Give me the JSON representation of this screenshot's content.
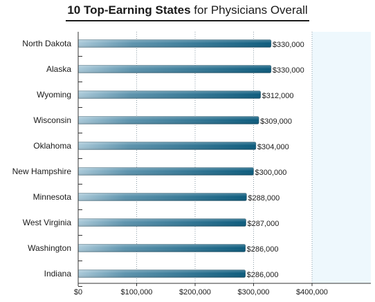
{
  "title": {
    "bold": "10 Top-Earning States",
    "rest": "for Physicians Overall"
  },
  "chart_data": {
    "type": "bar",
    "orientation": "horizontal",
    "categories": [
      "North Dakota",
      "Alaska",
      "Wyoming",
      "Wisconsin",
      "Oklahoma",
      "New Hampshire",
      "Minnesota",
      "West Virginia",
      "Washington",
      "Indiana"
    ],
    "values": [
      330000,
      330000,
      312000,
      309000,
      304000,
      300000,
      288000,
      287000,
      286000,
      286000
    ],
    "value_labels": [
      "$330,000",
      "$330,000",
      "$312,000",
      "$309,000",
      "$304,000",
      "$300,000",
      "$288,000",
      "$287,000",
      "$286,000",
      "$286,000"
    ],
    "xticks": [
      0,
      100000,
      200000,
      300000,
      400000
    ],
    "xtick_labels": [
      "$0",
      "$100,000",
      "$200,000",
      "$300,000",
      "$400,000"
    ],
    "xlim": [
      0,
      500000
    ],
    "grid": "vertical dotted",
    "colors": {
      "bar_start": "#a8c8d8",
      "bar_end": "#0a5a7c",
      "plot_bg": "#eef8fd"
    }
  }
}
